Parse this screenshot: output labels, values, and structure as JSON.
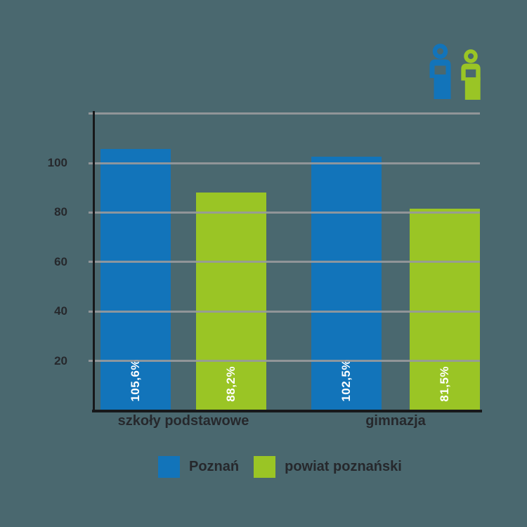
{
  "page": {
    "background_color": "#4a686f",
    "text_color": "#26282c",
    "grid_color": "#97999b",
    "axis_color": "#17181a"
  },
  "chart_data": {
    "type": "bar",
    "title": "",
    "categories": [
      "szkoły podstawowe",
      "gimnazja"
    ],
    "series": [
      {
        "name": "Poznań",
        "color": "#1274ba",
        "values": [
          105.6,
          102.5
        ],
        "value_labels": [
          "105,6%",
          "102,5%"
        ]
      },
      {
        "name": "powiat poznański",
        "color": "#9ac525",
        "values": [
          88.2,
          81.5
        ],
        "value_labels": [
          "88,2%",
          "81,5%"
        ]
      }
    ],
    "y_ticks": [
      20,
      40,
      60,
      80,
      100
    ],
    "gridline_values": [
      20,
      40,
      60,
      80,
      100,
      120
    ],
    "ylim": [
      0,
      121
    ],
    "grid": true,
    "value_suffix": "%",
    "legend_position": "bottom",
    "legend": [
      {
        "label": "Poznań",
        "color": "#1274ba"
      },
      {
        "label": "powiat poznański",
        "color": "#9ac525"
      }
    ]
  }
}
